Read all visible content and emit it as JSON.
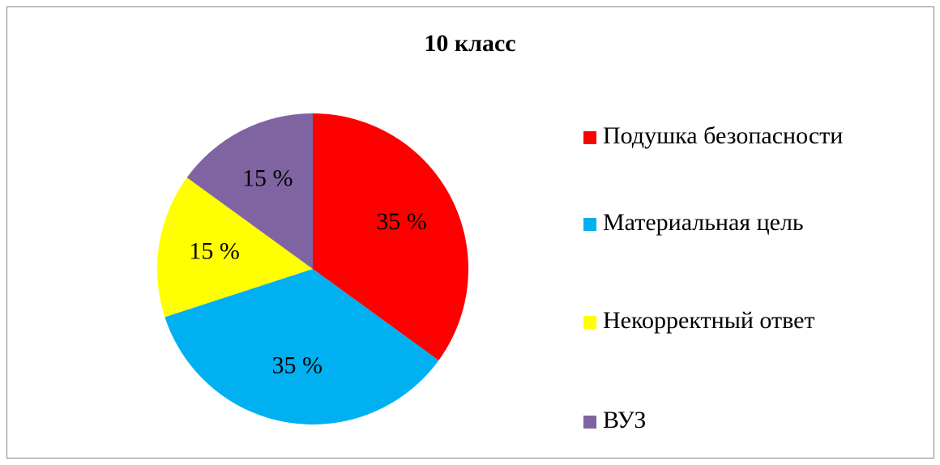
{
  "chart_data": {
    "type": "pie",
    "title": "10 класс",
    "categories": [
      "Подушка безопасности",
      "Материальная цель",
      "Некорректный ответ",
      "ВУЗ"
    ],
    "values": [
      35,
      35,
      15,
      15
    ],
    "value_labels": [
      "35 %",
      "35 %",
      "15 %",
      "15 %"
    ],
    "colors": [
      "#ff0000",
      "#00b0f0",
      "#ffff00",
      "#8064a2"
    ],
    "legend": "right"
  }
}
